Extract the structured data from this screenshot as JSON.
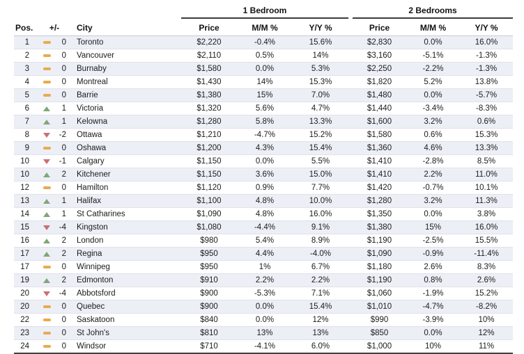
{
  "chart_data": {
    "type": "table",
    "column_groups": [
      {
        "label": "1 Bedroom"
      },
      {
        "label": "2 Bedrooms"
      }
    ],
    "columns": {
      "pos": "Pos.",
      "change": "+/-",
      "city": "City",
      "price": "Price",
      "mm": "M/M %",
      "yy": "Y/Y %"
    },
    "rows": [
      {
        "pos": "1",
        "dir": "flat",
        "change": "0",
        "city": "Toronto",
        "br1_price": "$2,220",
        "br1_mm": "-0.4%",
        "br1_yy": "15.6%",
        "br2_price": "$2,830",
        "br2_mm": "0.0%",
        "br2_yy": "16.0%"
      },
      {
        "pos": "2",
        "dir": "flat",
        "change": "0",
        "city": "Vancouver",
        "br1_price": "$2,110",
        "br1_mm": "0.5%",
        "br1_yy": "14%",
        "br2_price": "$3,160",
        "br2_mm": "-5.1%",
        "br2_yy": "-1.3%"
      },
      {
        "pos": "3",
        "dir": "flat",
        "change": "0",
        "city": "Burnaby",
        "br1_price": "$1,580",
        "br1_mm": "0.0%",
        "br1_yy": "5.3%",
        "br2_price": "$2,250",
        "br2_mm": "-2.2%",
        "br2_yy": "-1.3%"
      },
      {
        "pos": "4",
        "dir": "flat",
        "change": "0",
        "city": "Montreal",
        "br1_price": "$1,430",
        "br1_mm": "14%",
        "br1_yy": "15.3%",
        "br2_price": "$1,820",
        "br2_mm": "5.2%",
        "br2_yy": "13.8%"
      },
      {
        "pos": "5",
        "dir": "flat",
        "change": "0",
        "city": "Barrie",
        "br1_price": "$1,380",
        "br1_mm": "15%",
        "br1_yy": "7.0%",
        "br2_price": "$1,480",
        "br2_mm": "0.0%",
        "br2_yy": "-5.7%"
      },
      {
        "pos": "6",
        "dir": "up",
        "change": "1",
        "city": "Victoria",
        "br1_price": "$1,320",
        "br1_mm": "5.6%",
        "br1_yy": "4.7%",
        "br2_price": "$1,440",
        "br2_mm": "-3.4%",
        "br2_yy": "-8.3%"
      },
      {
        "pos": "7",
        "dir": "up",
        "change": "1",
        "city": "Kelowna",
        "br1_price": "$1,280",
        "br1_mm": "5.8%",
        "br1_yy": "13.3%",
        "br2_price": "$1,600",
        "br2_mm": "3.2%",
        "br2_yy": "0.6%"
      },
      {
        "pos": "8",
        "dir": "down",
        "change": "-2",
        "city": "Ottawa",
        "br1_price": "$1,210",
        "br1_mm": "-4.7%",
        "br1_yy": "15.2%",
        "br2_price": "$1,580",
        "br2_mm": "0.6%",
        "br2_yy": "15.3%"
      },
      {
        "pos": "9",
        "dir": "flat",
        "change": "0",
        "city": "Oshawa",
        "br1_price": "$1,200",
        "br1_mm": "4.3%",
        "br1_yy": "15.4%",
        "br2_price": "$1,360",
        "br2_mm": "4.6%",
        "br2_yy": "13.3%"
      },
      {
        "pos": "10",
        "dir": "down",
        "change": "-1",
        "city": "Calgary",
        "br1_price": "$1,150",
        "br1_mm": "0.0%",
        "br1_yy": "5.5%",
        "br2_price": "$1,410",
        "br2_mm": "-2.8%",
        "br2_yy": "8.5%"
      },
      {
        "pos": "10",
        "dir": "up",
        "change": "2",
        "city": "Kitchener",
        "br1_price": "$1,150",
        "br1_mm": "3.6%",
        "br1_yy": "15.0%",
        "br2_price": "$1,410",
        "br2_mm": "2.2%",
        "br2_yy": "11.0%"
      },
      {
        "pos": "12",
        "dir": "flat",
        "change": "0",
        "city": "Hamilton",
        "br1_price": "$1,120",
        "br1_mm": "0.9%",
        "br1_yy": "7.7%",
        "br2_price": "$1,420",
        "br2_mm": "-0.7%",
        "br2_yy": "10.1%"
      },
      {
        "pos": "13",
        "dir": "up",
        "change": "1",
        "city": "Halifax",
        "br1_price": "$1,100",
        "br1_mm": "4.8%",
        "br1_yy": "10.0%",
        "br2_price": "$1,280",
        "br2_mm": "3.2%",
        "br2_yy": "11.3%"
      },
      {
        "pos": "14",
        "dir": "up",
        "change": "1",
        "city": "St Catharines",
        "br1_price": "$1,090",
        "br1_mm": "4.8%",
        "br1_yy": "16.0%",
        "br2_price": "$1,350",
        "br2_mm": "0.0%",
        "br2_yy": "3.8%"
      },
      {
        "pos": "15",
        "dir": "down",
        "change": "-4",
        "city": "Kingston",
        "br1_price": "$1,080",
        "br1_mm": "-4.4%",
        "br1_yy": "9.1%",
        "br2_price": "$1,380",
        "br2_mm": "15%",
        "br2_yy": "16.0%"
      },
      {
        "pos": "16",
        "dir": "up",
        "change": "2",
        "city": "London",
        "br1_price": "$980",
        "br1_mm": "5.4%",
        "br1_yy": "8.9%",
        "br2_price": "$1,190",
        "br2_mm": "-2.5%",
        "br2_yy": "15.5%"
      },
      {
        "pos": "17",
        "dir": "up",
        "change": "2",
        "city": "Regina",
        "br1_price": "$950",
        "br1_mm": "4.4%",
        "br1_yy": "-4.0%",
        "br2_price": "$1,090",
        "br2_mm": "-0.9%",
        "br2_yy": "-11.4%"
      },
      {
        "pos": "17",
        "dir": "flat",
        "change": "0",
        "city": "Winnipeg",
        "br1_price": "$950",
        "br1_mm": "1%",
        "br1_yy": "6.7%",
        "br2_price": "$1,180",
        "br2_mm": "2.6%",
        "br2_yy": "8.3%"
      },
      {
        "pos": "19",
        "dir": "up",
        "change": "2",
        "city": "Edmonton",
        "br1_price": "$910",
        "br1_mm": "2.2%",
        "br1_yy": "2.2%",
        "br2_price": "$1,190",
        "br2_mm": "0.8%",
        "br2_yy": "2.6%"
      },
      {
        "pos": "20",
        "dir": "down",
        "change": "-4",
        "city": "Abbotsford",
        "br1_price": "$900",
        "br1_mm": "-5.3%",
        "br1_yy": "7.1%",
        "br2_price": "$1,060",
        "br2_mm": "-1.9%",
        "br2_yy": "15.2%"
      },
      {
        "pos": "20",
        "dir": "flat",
        "change": "0",
        "city": "Quebec",
        "br1_price": "$900",
        "br1_mm": "0.0%",
        "br1_yy": "15.4%",
        "br2_price": "$1,010",
        "br2_mm": "-4.7%",
        "br2_yy": "-8.2%"
      },
      {
        "pos": "22",
        "dir": "flat",
        "change": "0",
        "city": "Saskatoon",
        "br1_price": "$840",
        "br1_mm": "0.0%",
        "br1_yy": "12%",
        "br2_price": "$990",
        "br2_mm": "-3.9%",
        "br2_yy": "10%"
      },
      {
        "pos": "23",
        "dir": "flat",
        "change": "0",
        "city": "St John's",
        "br1_price": "$810",
        "br1_mm": "13%",
        "br1_yy": "13%",
        "br2_price": "$850",
        "br2_mm": "0.0%",
        "br2_yy": "12%"
      },
      {
        "pos": "24",
        "dir": "flat",
        "change": "0",
        "city": "Windsor",
        "br1_price": "$710",
        "br1_mm": "-4.1%",
        "br1_yy": "6.0%",
        "br2_price": "$1,000",
        "br2_mm": "10%",
        "br2_yy": "11%"
      }
    ]
  },
  "colors": {
    "stripe": "#edeff7",
    "up_triangle": "#7fa779",
    "down_triangle": "#c97070",
    "flat_dash": "#e8ab4e",
    "group_underline": "#3a3a3a",
    "bottom_border": "#3f3f3f"
  }
}
